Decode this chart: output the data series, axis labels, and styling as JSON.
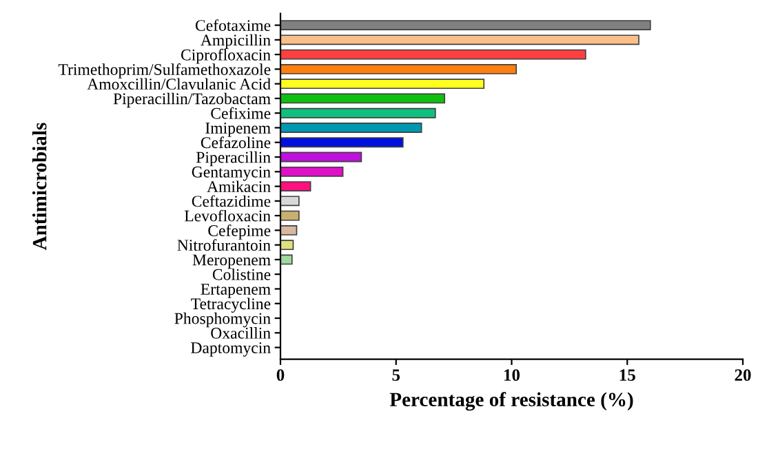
{
  "chart_data": {
    "type": "bar",
    "orientation": "horizontal",
    "xlabel": "Percentage of resistance (%)",
    "ylabel": "Antimicrobials",
    "categories": [
      "Cefotaxime",
      "Ampicillin",
      "Ciprofloxacin",
      "Trimethoprim/Sulfamethoxazole",
      "Amoxcillin/Clavulanic Acid",
      "Piperacillin/Tazobactam",
      "Cefixime",
      "Imipenem",
      "Cefazoline",
      "Piperacillin",
      "Gentamycin",
      "Amikacin",
      "Ceftazidime",
      "Levofloxacin",
      "Cefepime",
      "Nitrofurantoin",
      "Meropenem",
      "Colistine",
      "Ertapenem",
      "Tetracycline",
      "Phosphomycin",
      "Oxacillin",
      "Daptomycin"
    ],
    "values": [
      16.0,
      15.5,
      13.2,
      10.2,
      8.8,
      7.1,
      6.7,
      6.1,
      5.3,
      3.5,
      2.7,
      1.3,
      0.8,
      0.8,
      0.7,
      0.55,
      0.5,
      0,
      0,
      0,
      0,
      0,
      0
    ],
    "colors": [
      "#808080",
      "#fbbf8a",
      "#ff4040",
      "#ff8010",
      "#ffff20",
      "#10c010",
      "#10c080",
      "#0098b0",
      "#0010e0",
      "#c010e0",
      "#e010c8",
      "#ff1080",
      "#d8d8d8",
      "#c8b070",
      "#d8b8a0",
      "#e0e080",
      "#a0d8a0",
      "#404040",
      "#404040",
      "#404040",
      "#404040",
      "#404040",
      "#404040"
    ],
    "xlim": [
      0,
      20
    ],
    "xticks": [
      0,
      5,
      10,
      15,
      20
    ],
    "grid": false,
    "legend": false
  }
}
